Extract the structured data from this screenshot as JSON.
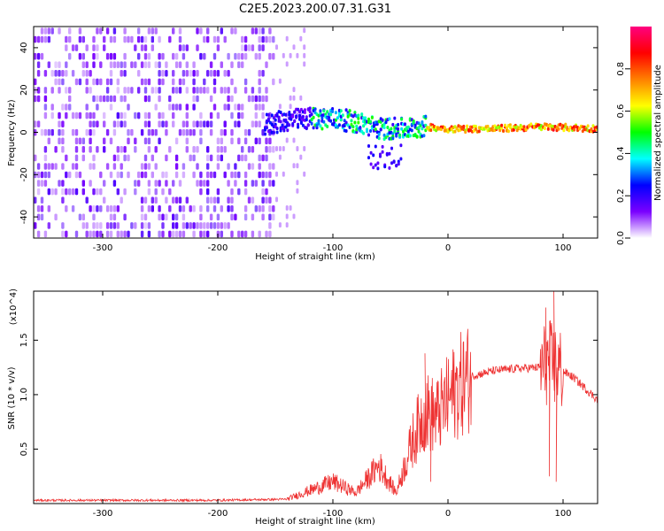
{
  "title": "C2E5.2023.200.07.31.G31",
  "chart_data": [
    {
      "type": "heatmap",
      "xlabel": "Height of straight line (km)",
      "ylabel": "Frequency (Hz)",
      "xlim": [
        -360,
        130
      ],
      "ylim": [
        -50,
        50
      ],
      "xticks": [
        -300,
        -200,
        -100,
        0,
        100
      ],
      "yticks": [
        -40,
        -20,
        0,
        20,
        40
      ],
      "colorbar": {
        "label": "Normalized spectral amplitude",
        "range": [
          0,
          1
        ],
        "ticks": [
          "0.0",
          "0.2",
          "0.4",
          "0.6",
          "0.8"
        ],
        "colors": [
          "#ffffff",
          "#7a00ff",
          "#0000ff",
          "#00ffff",
          "#00ff00",
          "#ffff00",
          "#ff8000",
          "#ff0000",
          "#ff0080"
        ]
      },
      "signal_track": [
        {
          "x": -160,
          "y": 3
        },
        {
          "x": -140,
          "y": 5
        },
        {
          "x": -120,
          "y": 6
        },
        {
          "x": -100,
          "y": 6
        },
        {
          "x": -80,
          "y": 4
        },
        {
          "x": -60,
          "y": 1
        },
        {
          "x": -40,
          "y": 1
        },
        {
          "x": -20,
          "y": 2
        },
        {
          "x": 0,
          "y": 1
        },
        {
          "x": 40,
          "y": 1
        },
        {
          "x": 80,
          "y": 2
        },
        {
          "x": 130,
          "y": 1
        }
      ]
    },
    {
      "type": "line",
      "xlabel": "Height of straight line (km)",
      "ylabel": "SNR (10 * v/v)",
      "yscale_label": "(x10^4)",
      "xlim": [
        -360,
        130
      ],
      "ylim": [
        0,
        1.95
      ],
      "xticks": [
        -300,
        -200,
        -100,
        0,
        100
      ],
      "yticks": [
        "0.5",
        "1.0",
        "1.5"
      ],
      "color": "#ee3333",
      "envelope": [
        {
          "x": -360,
          "y": 0.03
        },
        {
          "x": -200,
          "y": 0.03
        },
        {
          "x": -140,
          "y": 0.04
        },
        {
          "x": -120,
          "y": 0.12
        },
        {
          "x": -100,
          "y": 0.2
        },
        {
          "x": -80,
          "y": 0.1
        },
        {
          "x": -60,
          "y": 0.35
        },
        {
          "x": -45,
          "y": 0.1
        },
        {
          "x": -30,
          "y": 0.6
        },
        {
          "x": -20,
          "y": 0.85
        },
        {
          "x": -10,
          "y": 0.8
        },
        {
          "x": 0,
          "y": 0.95
        },
        {
          "x": 10,
          "y": 1.08
        },
        {
          "x": 20,
          "y": 1.17
        },
        {
          "x": 40,
          "y": 1.22
        },
        {
          "x": 60,
          "y": 1.24
        },
        {
          "x": 80,
          "y": 1.25
        },
        {
          "x": 88,
          "y": 1.3
        },
        {
          "x": 95,
          "y": 1.25
        },
        {
          "x": 110,
          "y": 1.15
        },
        {
          "x": 130,
          "y": 0.95
        }
      ],
      "spikes": [
        {
          "x": -20,
          "y": 1.38
        },
        {
          "x": -15,
          "y": 0.2
        },
        {
          "x": 85,
          "y": 1.8
        },
        {
          "x": 88,
          "y": 0.25
        },
        {
          "x": 92,
          "y": 1.95
        },
        {
          "x": 94,
          "y": 0.2
        },
        {
          "x": 98,
          "y": 1.4
        }
      ]
    }
  ]
}
